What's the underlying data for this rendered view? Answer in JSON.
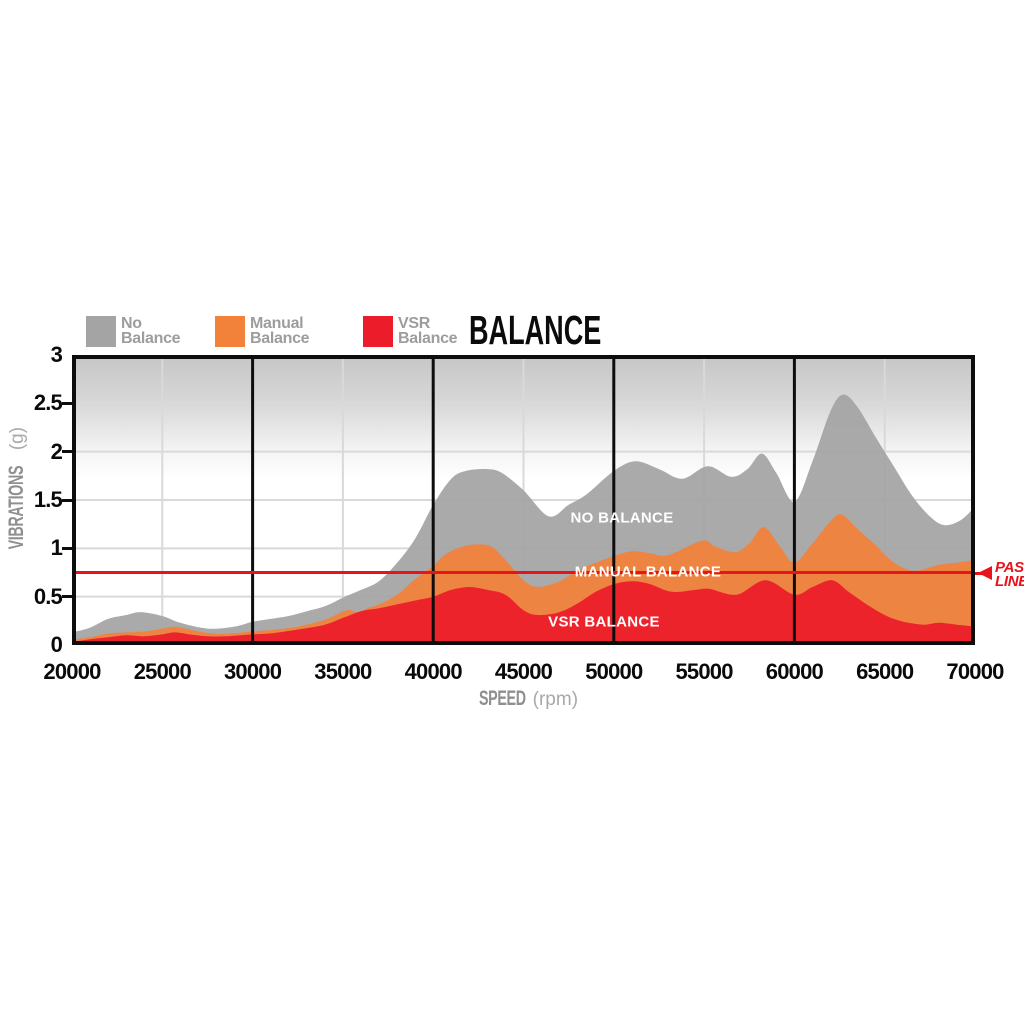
{
  "title": "BALANCE",
  "legend": [
    {
      "line1": "No",
      "line2": "Balance",
      "color": "#a4a4a4"
    },
    {
      "line1": "Manual",
      "line2": "Balance",
      "color": "#f2813a"
    },
    {
      "line1": "VSR",
      "line2": "Balance",
      "color": "#ed1c2a"
    }
  ],
  "y_axis": {
    "title": "VIBRATIONS",
    "unit": "(g)",
    "ticks": [
      "3",
      "2.5",
      "2",
      "1.5",
      "1",
      "0.5",
      "0"
    ]
  },
  "x_axis": {
    "title": "SPEED",
    "unit": "(rpm)",
    "ticks": [
      "20000",
      "25000",
      "30000",
      "35000",
      "40000",
      "45000",
      "50000",
      "55000",
      "60000",
      "65000",
      "70000"
    ]
  },
  "annotations": {
    "no_balance": "NO BALANCE",
    "manual_balance": "MANUAL BALANCE",
    "vsr_balance": "VSR BALANCE"
  },
  "pass_line": {
    "line1": "PASS",
    "line2": "LINE",
    "color": "#e8131b",
    "value": 0.75
  },
  "colors": {
    "grid": "#d9d9d9",
    "major_line": "#0d0d0d",
    "border": "#0d0d0d",
    "gradient_top": "#c6c6c6",
    "gradient_mid": "#d8d8d8",
    "gradient_low": "#f4f4f4"
  },
  "chart_data": {
    "type": "area",
    "title": "BALANCE",
    "xlabel": "SPEED (rpm)",
    "ylabel": "VIBRATIONS (g)",
    "xlim": [
      20000,
      70000
    ],
    "ylim": [
      0,
      3
    ],
    "x_tick_step": 5000,
    "y_tick_step": 0.5,
    "x_major_lines": [
      30000,
      40000,
      50000,
      60000
    ],
    "x_gridlines": [
      25000,
      35000,
      45000,
      55000,
      65000
    ],
    "y_gridlines": [
      0.5,
      1,
      1.5,
      2,
      2.5
    ],
    "pass_line_y": 0.75,
    "legend_position": "top-left",
    "series": [
      {
        "name": "No Balance",
        "color": "#a4a4a4",
        "points": [
          [
            20000,
            0.13
          ],
          [
            21000,
            0.18
          ],
          [
            22000,
            0.27
          ],
          [
            23000,
            0.31
          ],
          [
            23800,
            0.34
          ],
          [
            25000,
            0.3
          ],
          [
            26000,
            0.23
          ],
          [
            27500,
            0.17
          ],
          [
            29000,
            0.19
          ],
          [
            30000,
            0.24
          ],
          [
            31000,
            0.27
          ],
          [
            32000,
            0.3
          ],
          [
            33000,
            0.35
          ],
          [
            34000,
            0.4
          ],
          [
            35000,
            0.49
          ],
          [
            36000,
            0.57
          ],
          [
            37000,
            0.66
          ],
          [
            38000,
            0.85
          ],
          [
            39000,
            1.1
          ],
          [
            40000,
            1.45
          ],
          [
            41000,
            1.72
          ],
          [
            41800,
            1.8
          ],
          [
            43000,
            1.82
          ],
          [
            43800,
            1.78
          ],
          [
            45000,
            1.6
          ],
          [
            46400,
            1.33
          ],
          [
            47500,
            1.45
          ],
          [
            48500,
            1.56
          ],
          [
            50000,
            1.8
          ],
          [
            51200,
            1.9
          ],
          [
            52500,
            1.82
          ],
          [
            53800,
            1.72
          ],
          [
            55200,
            1.85
          ],
          [
            56500,
            1.74
          ],
          [
            57400,
            1.82
          ],
          [
            58200,
            1.98
          ],
          [
            59000,
            1.78
          ],
          [
            60000,
            1.48
          ],
          [
            61000,
            1.9
          ],
          [
            62000,
            2.42
          ],
          [
            62700,
            2.59
          ],
          [
            63500,
            2.46
          ],
          [
            64500,
            2.15
          ],
          [
            65500,
            1.85
          ],
          [
            66500,
            1.55
          ],
          [
            67500,
            1.33
          ],
          [
            68300,
            1.24
          ],
          [
            69200,
            1.29
          ],
          [
            70000,
            1.43
          ]
        ]
      },
      {
        "name": "Manual Balance",
        "color": "#f2813a",
        "points": [
          [
            20000,
            0.055
          ],
          [
            21000,
            0.08
          ],
          [
            22000,
            0.12
          ],
          [
            23000,
            0.13
          ],
          [
            24000,
            0.14
          ],
          [
            25000,
            0.17
          ],
          [
            25700,
            0.19
          ],
          [
            26500,
            0.16
          ],
          [
            27500,
            0.125
          ],
          [
            28500,
            0.115
          ],
          [
            30000,
            0.14
          ],
          [
            31500,
            0.165
          ],
          [
            32500,
            0.19
          ],
          [
            34000,
            0.26
          ],
          [
            35200,
            0.36
          ],
          [
            35800,
            0.34
          ],
          [
            36500,
            0.39
          ],
          [
            37000,
            0.42
          ],
          [
            38000,
            0.52
          ],
          [
            39000,
            0.68
          ],
          [
            40000,
            0.82
          ],
          [
            40700,
            0.94
          ],
          [
            41500,
            1.01
          ],
          [
            42300,
            1.04
          ],
          [
            43200,
            1.02
          ],
          [
            44000,
            0.88
          ],
          [
            45000,
            0.67
          ],
          [
            45800,
            0.6
          ],
          [
            47000,
            0.66
          ],
          [
            48000,
            0.77
          ],
          [
            49000,
            0.85
          ],
          [
            50000,
            0.92
          ],
          [
            51000,
            0.97
          ],
          [
            52000,
            0.95
          ],
          [
            53000,
            0.93
          ],
          [
            54900,
            1.08
          ],
          [
            55600,
            1.02
          ],
          [
            56700,
            0.96
          ],
          [
            57500,
            1.05
          ],
          [
            58300,
            1.22
          ],
          [
            59200,
            1.02
          ],
          [
            60000,
            0.85
          ],
          [
            61000,
            1.05
          ],
          [
            62000,
            1.28
          ],
          [
            62600,
            1.35
          ],
          [
            63500,
            1.2
          ],
          [
            64500,
            1.03
          ],
          [
            65200,
            0.9
          ],
          [
            66000,
            0.8
          ],
          [
            66800,
            0.77
          ],
          [
            68000,
            0.83
          ],
          [
            69000,
            0.85
          ],
          [
            70000,
            0.88
          ]
        ]
      },
      {
        "name": "VSR Balance",
        "color": "#ed1c2a",
        "points": [
          [
            20000,
            0.03
          ],
          [
            21000,
            0.06
          ],
          [
            22000,
            0.08
          ],
          [
            23000,
            0.1
          ],
          [
            24000,
            0.09
          ],
          [
            25000,
            0.11
          ],
          [
            25700,
            0.13
          ],
          [
            26500,
            0.11
          ],
          [
            27500,
            0.09
          ],
          [
            28500,
            0.09
          ],
          [
            30000,
            0.11
          ],
          [
            31000,
            0.12
          ],
          [
            32500,
            0.16
          ],
          [
            34000,
            0.21
          ],
          [
            35000,
            0.28
          ],
          [
            36000,
            0.35
          ],
          [
            37000,
            0.38
          ],
          [
            38000,
            0.42
          ],
          [
            39000,
            0.46
          ],
          [
            40000,
            0.5
          ],
          [
            41000,
            0.57
          ],
          [
            42000,
            0.6
          ],
          [
            43000,
            0.57
          ],
          [
            44000,
            0.52
          ],
          [
            45000,
            0.36
          ],
          [
            45800,
            0.31
          ],
          [
            47000,
            0.34
          ],
          [
            48000,
            0.43
          ],
          [
            49000,
            0.55
          ],
          [
            50000,
            0.63
          ],
          [
            51000,
            0.66
          ],
          [
            52000,
            0.63
          ],
          [
            53200,
            0.55
          ],
          [
            54500,
            0.57
          ],
          [
            55300,
            0.58
          ],
          [
            56800,
            0.52
          ],
          [
            58400,
            0.67
          ],
          [
            60000,
            0.52
          ],
          [
            61000,
            0.6
          ],
          [
            62100,
            0.67
          ],
          [
            63000,
            0.55
          ],
          [
            64000,
            0.42
          ],
          [
            64800,
            0.33
          ],
          [
            65500,
            0.27
          ],
          [
            66300,
            0.23
          ],
          [
            67200,
            0.21
          ],
          [
            68000,
            0.23
          ],
          [
            69000,
            0.21
          ],
          [
            70000,
            0.19
          ]
        ]
      }
    ]
  }
}
